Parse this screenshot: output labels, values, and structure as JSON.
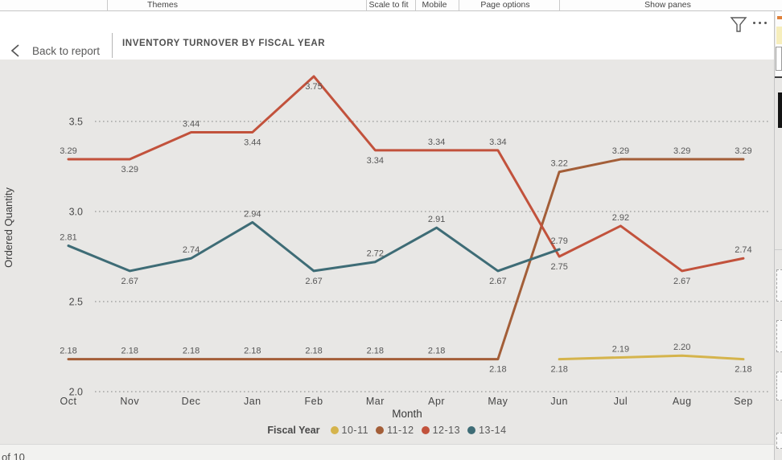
{
  "top_menu": {
    "items": [
      {
        "label": "Themes"
      },
      {
        "label": "Scale to fit"
      },
      {
        "label": "Mobile"
      },
      {
        "label": "Page options"
      },
      {
        "label": "Show panes"
      }
    ]
  },
  "header": {
    "back_label": "Back to report",
    "title": "INVENTORY TURNOVER BY FISCAL YEAR",
    "icons": [
      "back-chevron-icon",
      "filter-funnel-icon",
      "more-ellipsis-icon"
    ]
  },
  "pager": {
    "label": "of 10"
  },
  "chart_data": {
    "type": "line",
    "title": "INVENTORY TURNOVER BY FISCAL YEAR",
    "xlabel": "Month",
    "ylabel": "Ordered Quantity",
    "ylim": [
      2.0,
      3.85
    ],
    "yticks": [
      "2.0",
      "2.5",
      "3.0",
      "3.5"
    ],
    "grid": "horizontal dotted",
    "legend_position": "bottom",
    "legend_title": "Fiscal Year",
    "categories": [
      "Oct",
      "Nov",
      "Dec",
      "Jan",
      "Feb",
      "Mar",
      "Apr",
      "May",
      "Jun",
      "Jul",
      "Aug",
      "Sep"
    ],
    "series": [
      {
        "name": "10-11",
        "color": "#d5b44c",
        "values": [
          null,
          null,
          null,
          null,
          null,
          null,
          null,
          null,
          2.18,
          2.19,
          2.2,
          2.18
        ],
        "label_pos": [
          null,
          null,
          null,
          null,
          null,
          null,
          null,
          null,
          "below",
          "above",
          "above",
          "below"
        ]
      },
      {
        "name": "11-12",
        "color": "#a35e38",
        "values": [
          2.18,
          2.18,
          2.18,
          2.18,
          2.18,
          2.18,
          2.18,
          2.18,
          3.22,
          3.29,
          3.29,
          3.29
        ],
        "label_pos": [
          "above",
          "above",
          "above",
          "above",
          "above",
          "above",
          "above",
          "below",
          "above",
          "above",
          "above",
          "above"
        ]
      },
      {
        "name": "12-13",
        "color": "#c2523c",
        "values": [
          3.29,
          3.29,
          3.44,
          3.44,
          3.75,
          3.34,
          3.34,
          3.34,
          2.75,
          2.92,
          2.67,
          2.74
        ],
        "label_pos": [
          "above",
          "below",
          "above",
          "below",
          "below",
          "below",
          "above",
          "above",
          "below",
          "above",
          "below",
          "above"
        ]
      },
      {
        "name": "13-14",
        "color": "#3e6c76",
        "values": [
          2.81,
          2.67,
          2.74,
          2.94,
          2.67,
          2.72,
          2.91,
          2.67,
          2.79,
          null,
          null,
          null
        ],
        "label_pos": [
          "above",
          "below",
          "above",
          "above",
          "below",
          "above",
          "above",
          "below",
          "above",
          null,
          null,
          null
        ]
      }
    ]
  }
}
